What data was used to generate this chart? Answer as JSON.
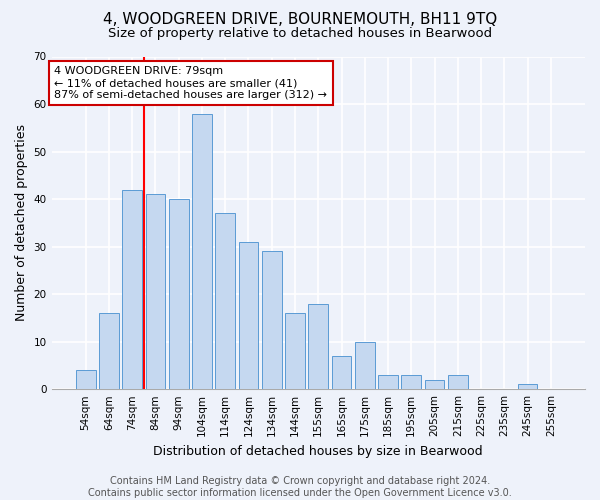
{
  "title": "4, WOODGREEN DRIVE, BOURNEMOUTH, BH11 9TQ",
  "subtitle": "Size of property relative to detached houses in Bearwood",
  "xlabel": "Distribution of detached houses by size in Bearwood",
  "ylabel": "Number of detached properties",
  "categories": [
    "54sqm",
    "64sqm",
    "74sqm",
    "84sqm",
    "94sqm",
    "104sqm",
    "114sqm",
    "124sqm",
    "134sqm",
    "144sqm",
    "155sqm",
    "165sqm",
    "175sqm",
    "185sqm",
    "195sqm",
    "205sqm",
    "215sqm",
    "225sqm",
    "235sqm",
    "245sqm",
    "255sqm"
  ],
  "values": [
    4,
    16,
    42,
    41,
    40,
    58,
    37,
    31,
    29,
    16,
    18,
    7,
    10,
    3,
    3,
    2,
    3,
    0,
    0,
    1,
    0
  ],
  "bar_color": "#c5d8f0",
  "bar_edge_color": "#5b9bd5",
  "bar_width": 0.85,
  "ylim": [
    0,
    70
  ],
  "yticks": [
    0,
    10,
    20,
    30,
    40,
    50,
    60,
    70
  ],
  "red_line_x": 2.5,
  "annotation_text": "4 WOODGREEN DRIVE: 79sqm\n← 11% of detached houses are smaller (41)\n87% of semi-detached houses are larger (312) →",
  "annotation_box_color": "#ffffff",
  "annotation_box_edge": "#cc0000",
  "footer_line1": "Contains HM Land Registry data © Crown copyright and database right 2024.",
  "footer_line2": "Contains public sector information licensed under the Open Government Licence v3.0.",
  "background_color": "#eef2fa",
  "grid_color": "#ffffff",
  "title_fontsize": 11,
  "subtitle_fontsize": 9.5,
  "axis_label_fontsize": 9,
  "tick_fontsize": 7.5,
  "footer_fontsize": 7
}
